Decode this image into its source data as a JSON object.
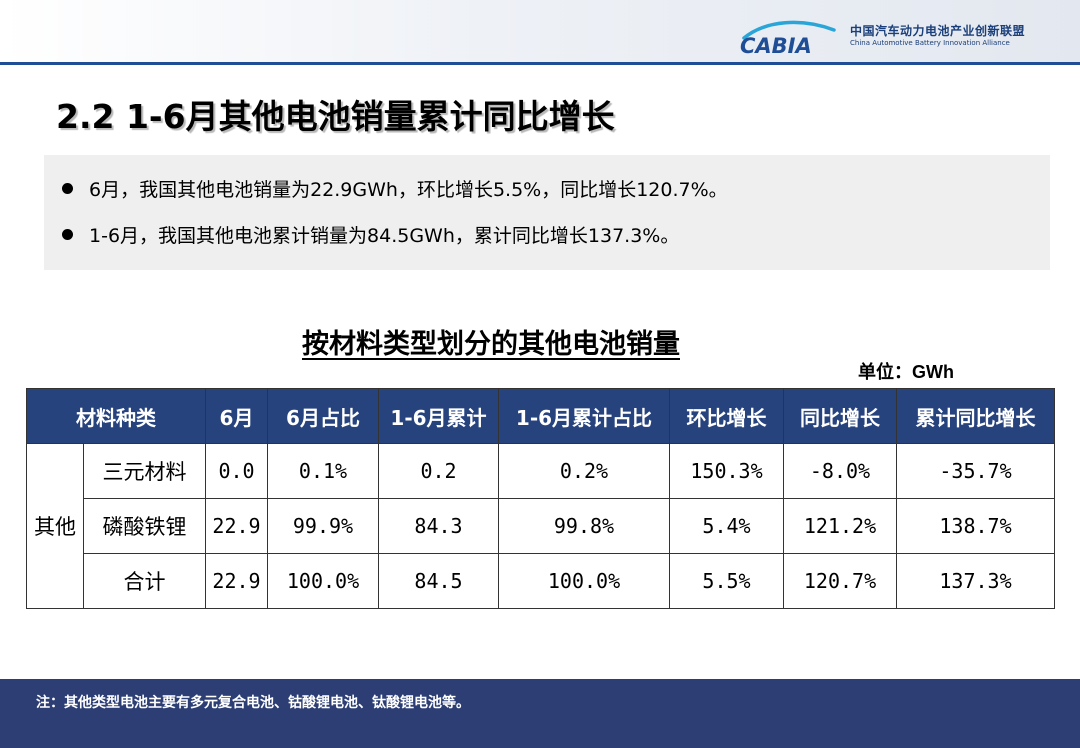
{
  "header": {
    "logo_text": "CABIA",
    "org_name_cn": "中国汽车动力电池产业创新联盟",
    "org_name_en": "China Automotive Battery Innovation Alliance",
    "colors": {
      "brand": "#1f4e96",
      "header_line": "#1f4e96"
    }
  },
  "page_title": "2.2 1-6月其他电池销量累计同比增长",
  "summary": {
    "bullets": [
      "6月，我国其他电池销量为22.9GWh，环比增长5.5%，同比增长120.7%。",
      "1-6月，我国其他电池累计销量为84.5GWh，累计同比增长137.3%。"
    ]
  },
  "table": {
    "title": "按材料类型划分的其他电池销量",
    "unit": "单位：GWh",
    "header_color": "#27437e",
    "columns": [
      "材料种类",
      "6月",
      "6月占比",
      "1-6月累计",
      "1-6月累计占比",
      "环比增长",
      "同比增长",
      "累计同比增长"
    ],
    "group_label": "其他",
    "rows": [
      {
        "material": "三元材料",
        "jun": "0.0",
        "jun_share": "0.1%",
        "ytd": "0.2",
        "ytd_share": "0.2%",
        "mom": "150.3%",
        "yoy": "-8.0%",
        "ytd_yoy": "-35.7%"
      },
      {
        "material": "磷酸铁锂",
        "jun": "22.9",
        "jun_share": "99.9%",
        "ytd": "84.3",
        "ytd_share": "99.8%",
        "mom": "5.4%",
        "yoy": "121.2%",
        "ytd_yoy": "138.7%"
      },
      {
        "material": "合计",
        "jun": "22.9",
        "jun_share": "100.0%",
        "ytd": "84.5",
        "ytd_share": "100.0%",
        "mom": "5.5%",
        "yoy": "120.7%",
        "ytd_yoy": "137.3%"
      }
    ]
  },
  "footer": {
    "note": "注：其他类型电池主要有多元复合电池、钴酸锂电池、钛酸锂电池等。",
    "color": "#2c3e74"
  }
}
